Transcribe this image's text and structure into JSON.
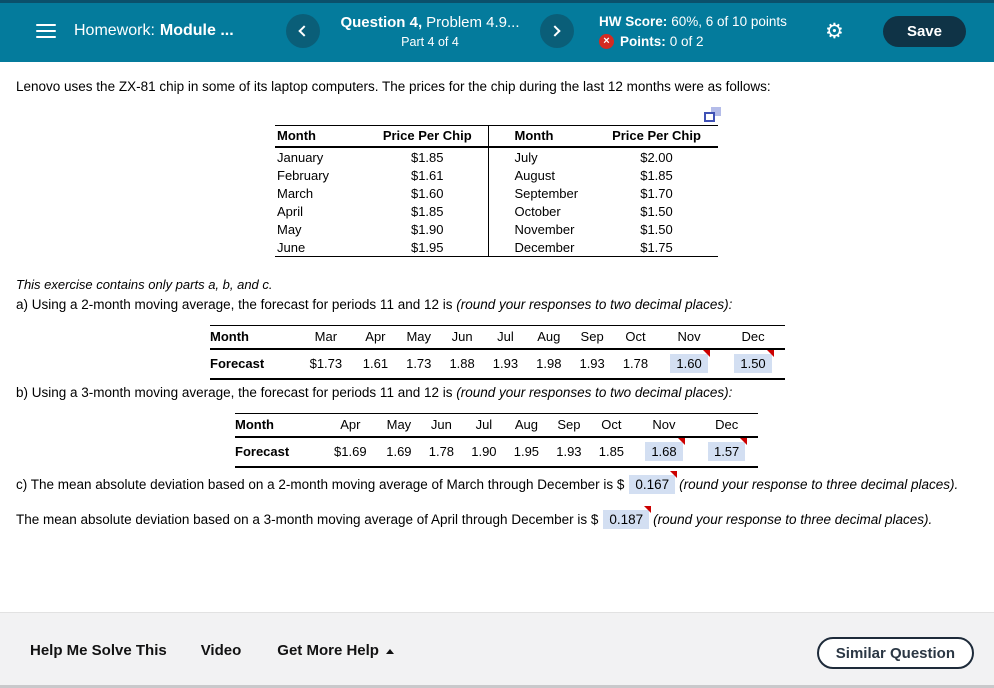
{
  "header": {
    "assignment_label": "Homework:",
    "assignment_name": "Module ...",
    "question_title": "Question 4,",
    "question_subtitle": "Problem 4.9...",
    "part_label": "Part 4 of 4",
    "hw_score_label": "HW Score:",
    "hw_score_value": "60%, 6 of 10 points",
    "points_label": "Points:",
    "points_value": "0 of 2",
    "error_icon": "×",
    "gear_icon": "⚙",
    "save_label": "Save"
  },
  "problem": {
    "intro": "Lenovo uses the ZX-81 chip in some of its laptop computers. The prices for the chip during the last 12 months were as follows:",
    "price_table": {
      "headers": [
        "Month",
        "Price Per Chip",
        "Month",
        "Price Per Chip"
      ],
      "rows": [
        [
          "January",
          "$1.85",
          "July",
          "$2.00"
        ],
        [
          "February",
          "$1.61",
          "August",
          "$1.85"
        ],
        [
          "March",
          "$1.60",
          "September",
          "$1.70"
        ],
        [
          "April",
          "$1.85",
          "October",
          "$1.50"
        ],
        [
          "May",
          "$1.90",
          "November",
          "$1.50"
        ],
        [
          "June",
          "$1.95",
          "December",
          "$1.75"
        ]
      ]
    },
    "note": "This exercise contains only parts a, b, and c.",
    "part_a_text": "a) Using a 2-month moving average, the forecast for periods 11 and 12 is",
    "part_a_hint": "(round your responses to two decimal places):",
    "part_b_text": "b) Using a 3-month moving average, the forecast for periods 11 and 12 is",
    "part_b_hint": "(round your responses to two decimal places):",
    "part_c": {
      "line1_text": "c) The mean absolute deviation based on a 2-month moving average of March through December is $",
      "line1_answer": "0.167",
      "line1_hint": "(round your response to three decimal places).",
      "line2_text": "The mean absolute deviation based on a 3-month moving average of April through December is $",
      "line2_answer": "0.187",
      "line2_hint": "(round your response to three decimal places)."
    }
  },
  "table_a": {
    "row_label_months": "Month",
    "row_label_forecast": "Forecast",
    "months": [
      "Mar",
      "Apr",
      "May",
      "Jun",
      "Jul",
      "Aug",
      "Sep",
      "Oct",
      "Nov",
      "Dec"
    ],
    "values": [
      "$1.73",
      "1.61",
      "1.73",
      "1.88",
      "1.93",
      "1.98",
      "1.93",
      "1.78",
      "1.60",
      "1.50"
    ],
    "incorrect_indices": [
      8,
      9
    ]
  },
  "table_b": {
    "row_label_months": "Month",
    "row_label_forecast": "Forecast",
    "months": [
      "Apr",
      "May",
      "Jun",
      "Jul",
      "Aug",
      "Sep",
      "Oct",
      "Nov",
      "Dec"
    ],
    "values": [
      "$1.69",
      "1.69",
      "1.78",
      "1.90",
      "1.95",
      "1.93",
      "1.85",
      "1.68",
      "1.57"
    ],
    "incorrect_indices": [
      7,
      8
    ]
  },
  "footer": {
    "help_me_solve": "Help Me Solve This",
    "video": "Video",
    "get_more_help": "Get More Help",
    "similar_question": "Similar Question"
  },
  "colors": {
    "header_bg": "#047b9c",
    "nav_circle": "#0a5e78",
    "save_bg": "#0f3346",
    "error_red": "#d42b22",
    "flag_red": "#cc0000",
    "answer_highlight": "#d3dff2",
    "footer_bg": "#f2f2f3"
  }
}
